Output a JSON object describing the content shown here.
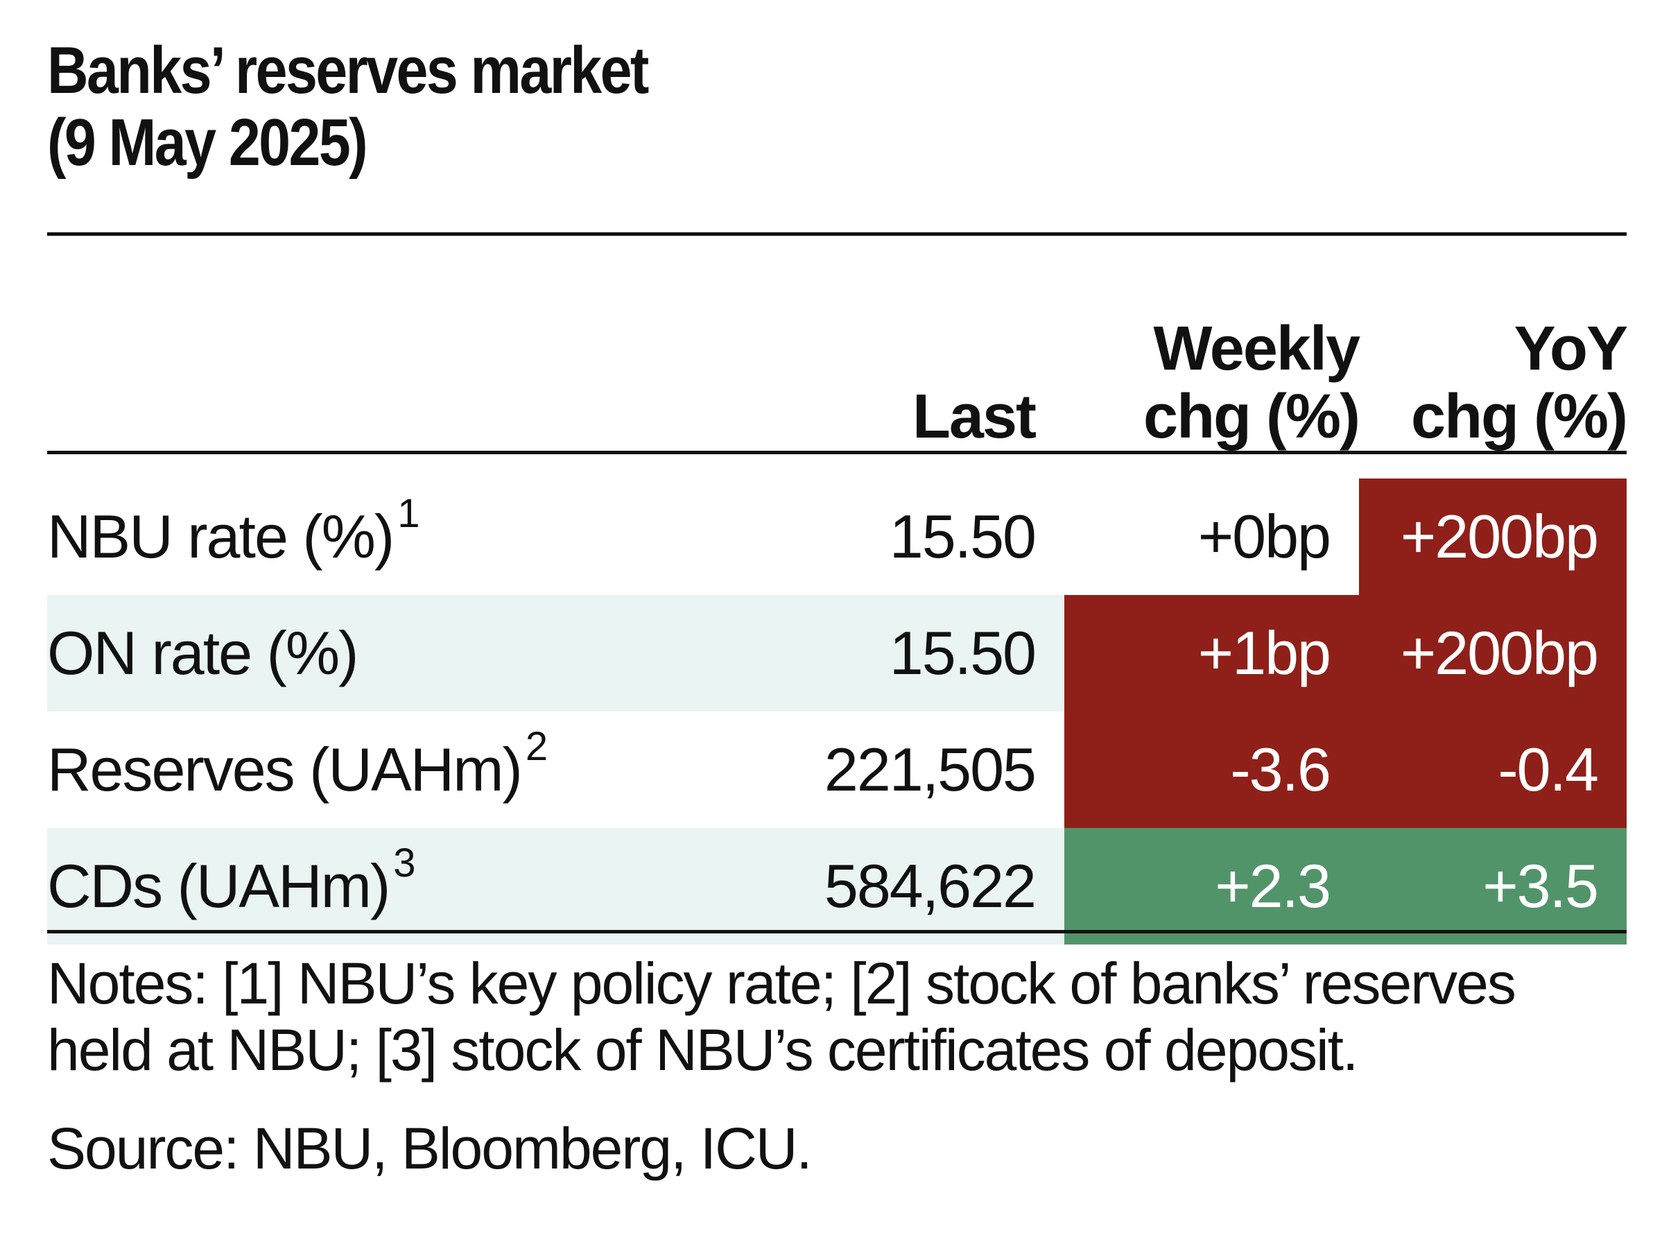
{
  "title": {
    "line1": "Banks’ reserves market",
    "line2": "(9 May 2025)"
  },
  "table": {
    "headers": {
      "label": "",
      "last": "Last",
      "weekly": "Weekly\nchg (%)",
      "yoy": "YoY\nchg (%)"
    },
    "rows": [
      {
        "label": "NBU rate (%)",
        "note": "1",
        "last": "15.50",
        "weekly": "+0bp",
        "yoy": "+200bp",
        "weekly_color": "none",
        "yoy_color": "#8e2019"
      },
      {
        "label": "ON rate (%)",
        "note": "",
        "last": "15.50",
        "weekly": "+1bp",
        "yoy": "+200bp",
        "weekly_color": "#8e2019",
        "yoy_color": "#8e2019"
      },
      {
        "label": "Reserves (UAHm)",
        "note": "2",
        "last": "221,505",
        "weekly": "-3.6",
        "yoy": "-0.4",
        "weekly_color": "#8e2019",
        "yoy_color": "#8e2019"
      },
      {
        "label": "CDs (UAHm)",
        "note": "3",
        "last": "584,622",
        "weekly": "+2.3",
        "yoy": "+3.5",
        "weekly_color": "#52946a",
        "yoy_color": "#52946a"
      }
    ],
    "row_shading": "#eaf4f2"
  },
  "notes": "Notes: [1] NBU’s key policy rate; [2] stock of banks’ reserves held at NBU; [3] stock of NBU’s certificates of deposit.",
  "source": "Source: NBU, Bloomberg, ICU."
}
